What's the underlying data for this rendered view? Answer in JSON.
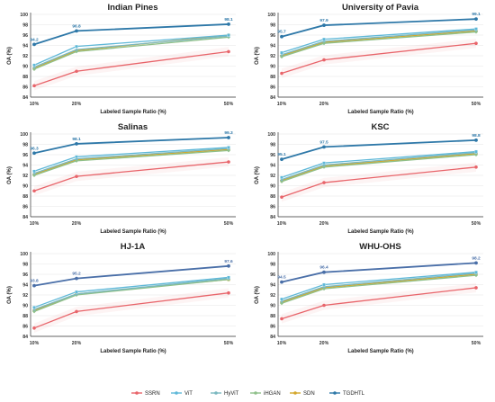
{
  "colors": {
    "SSRN": "#e8646a",
    "ViT": "#5fb8d8",
    "HyViT": "#7ab8c0",
    "iHGAN": "#8fc08a",
    "SDN": "#d4a72c",
    "TGDHTL": "#2e78a8",
    "TGDHTL_alt": "#4a6fa8"
  },
  "legend": [
    "SSRN",
    "ViT",
    "HyViT",
    "iHGAN",
    "SDN",
    "TGDHTL"
  ],
  "chart_data": [
    {
      "type": "line",
      "title": "Indian Pines",
      "xlabel": "Labeled Sample Ratio (%)",
      "ylabel": "OA (%)",
      "categories": [
        "10%",
        "20%",
        "50%"
      ],
      "x": [
        10,
        20,
        50
      ],
      "ylim": [
        84,
        100
      ],
      "yticks": [
        84,
        86,
        88,
        90,
        92,
        94,
        96,
        98,
        100
      ],
      "grid": true,
      "series": [
        {
          "name": "SSRN",
          "values": [
            86.2,
            89.0,
            92.8
          ]
        },
        {
          "name": "ViT",
          "values": [
            90.2,
            93.8,
            96.0
          ]
        },
        {
          "name": "HyViT",
          "values": [
            89.8,
            93.2,
            95.8
          ]
        },
        {
          "name": "iHGAN",
          "values": [
            89.4,
            92.8,
            95.6
          ]
        },
        {
          "name": "SDN",
          "values": [
            89.6,
            93.0,
            96.0
          ]
        },
        {
          "name": "TGDHTL",
          "values": [
            94.2,
            96.8,
            98.1
          ]
        }
      ],
      "labels": [
        "94.2",
        "96.8",
        "98.1"
      ]
    },
    {
      "type": "line",
      "title": "University of Pavia",
      "xlabel": "Labeled Sample Ratio (%)",
      "ylabel": "OA (%)",
      "categories": [
        "10%",
        "20%",
        "50%"
      ],
      "x": [
        10,
        20,
        50
      ],
      "ylim": [
        84,
        100
      ],
      "yticks": [
        84,
        86,
        88,
        90,
        92,
        94,
        96,
        98,
        100
      ],
      "grid": true,
      "series": [
        {
          "name": "SSRN",
          "values": [
            88.6,
            91.2,
            94.4
          ]
        },
        {
          "name": "ViT",
          "values": [
            92.6,
            95.2,
            97.2
          ]
        },
        {
          "name": "HyViT",
          "values": [
            92.2,
            94.8,
            97.0
          ]
        },
        {
          "name": "iHGAN",
          "values": [
            91.8,
            94.4,
            96.6
          ]
        },
        {
          "name": "SDN",
          "values": [
            92.0,
            94.6,
            96.8
          ]
        },
        {
          "name": "TGDHTL",
          "values": [
            95.7,
            97.9,
            99.1
          ]
        }
      ],
      "labels": [
        "95.7",
        "97.9",
        "99.1"
      ]
    },
    {
      "type": "line",
      "title": "Salinas",
      "xlabel": "Labeled Sample Ratio (%)",
      "ylabel": "OA (%)",
      "categories": [
        "10%",
        "20%",
        "50%"
      ],
      "x": [
        10,
        20,
        50
      ],
      "ylim": [
        84,
        100
      ],
      "yticks": [
        84,
        86,
        88,
        90,
        92,
        94,
        96,
        98,
        100
      ],
      "grid": true,
      "series": [
        {
          "name": "SSRN",
          "values": [
            89.0,
            91.8,
            94.6
          ]
        },
        {
          "name": "ViT",
          "values": [
            92.8,
            95.6,
            97.4
          ]
        },
        {
          "name": "HyViT",
          "values": [
            92.4,
            95.2,
            97.2
          ]
        },
        {
          "name": "iHGAN",
          "values": [
            92.0,
            94.8,
            96.8
          ]
        },
        {
          "name": "SDN",
          "values": [
            92.2,
            95.0,
            97.0
          ]
        },
        {
          "name": "TGDHTL",
          "values": [
            96.3,
            98.1,
            99.3
          ]
        }
      ],
      "labels": [
        "96.3",
        "98.1",
        "99.3"
      ]
    },
    {
      "type": "line",
      "title": "KSC",
      "xlabel": "Labeled Sample Ratio (%)",
      "ylabel": "OA (%)",
      "categories": [
        "10%",
        "20%",
        "50%"
      ],
      "x": [
        10,
        20,
        50
      ],
      "ylim": [
        84,
        100
      ],
      "yticks": [
        84,
        86,
        88,
        90,
        92,
        94,
        96,
        98,
        100
      ],
      "grid": true,
      "series": [
        {
          "name": "SSRN",
          "values": [
            87.8,
            90.6,
            93.6
          ]
        },
        {
          "name": "ViT",
          "values": [
            91.6,
            94.4,
            96.6
          ]
        },
        {
          "name": "HyViT",
          "values": [
            91.2,
            94.0,
            96.4
          ]
        },
        {
          "name": "iHGAN",
          "values": [
            90.8,
            93.6,
            96.0
          ]
        },
        {
          "name": "SDN",
          "values": [
            91.0,
            93.8,
            96.2
          ]
        },
        {
          "name": "TGDHTL",
          "values": [
            95.1,
            97.5,
            98.8
          ]
        }
      ],
      "labels": [
        "95.1",
        "97.5",
        "98.8"
      ]
    },
    {
      "type": "line",
      "title": "HJ-1A",
      "xlabel": "Labeled Sample Ratio (%)",
      "ylabel": "OA (%)",
      "categories": [
        "10%",
        "20%",
        "50%"
      ],
      "x": [
        10,
        20,
        50
      ],
      "ylim": [
        84,
        100
      ],
      "yticks": [
        84,
        86,
        88,
        90,
        92,
        94,
        96,
        98,
        100
      ],
      "grid": true,
      "series": [
        {
          "name": "SSRN",
          "values": [
            85.6,
            88.8,
            92.4
          ]
        },
        {
          "name": "ViT",
          "values": [
            89.6,
            92.6,
            95.4
          ]
        },
        {
          "name": "HyViT",
          "values": [
            89.2,
            92.2,
            95.2
          ]
        },
        {
          "name": "iHGAN",
          "values": [
            88.8,
            92.0,
            95.0
          ]
        },
        {
          "name": "SDN",
          "values": [
            89.0,
            92.2,
            95.0
          ]
        },
        {
          "name": "TGDHTL",
          "values": [
            93.8,
            95.2,
            97.6
          ]
        }
      ],
      "labels": [
        "93.8",
        "95.2",
        "97.6"
      ]
    },
    {
      "type": "line",
      "title": "WHU-OHS",
      "xlabel": "Labeled Sample Ratio (%)",
      "ylabel": "OA (%)",
      "categories": [
        "10%",
        "20%",
        "50%"
      ],
      "x": [
        10,
        20,
        50
      ],
      "ylim": [
        84,
        100
      ],
      "yticks": [
        84,
        86,
        88,
        90,
        92,
        94,
        96,
        98,
        100
      ],
      "grid": true,
      "series": [
        {
          "name": "SSRN",
          "values": [
            87.4,
            90.0,
            93.4
          ]
        },
        {
          "name": "ViT",
          "values": [
            91.2,
            94.0,
            96.4
          ]
        },
        {
          "name": "HyViT",
          "values": [
            90.8,
            93.6,
            96.2
          ]
        },
        {
          "name": "iHGAN",
          "values": [
            90.4,
            93.2,
            95.8
          ]
        },
        {
          "name": "SDN",
          "values": [
            90.6,
            93.4,
            96.0
          ]
        },
        {
          "name": "TGDHTL",
          "values": [
            94.5,
            96.4,
            98.2
          ]
        }
      ],
      "labels": [
        "94.5",
        "96.4",
        "98.2"
      ]
    }
  ]
}
